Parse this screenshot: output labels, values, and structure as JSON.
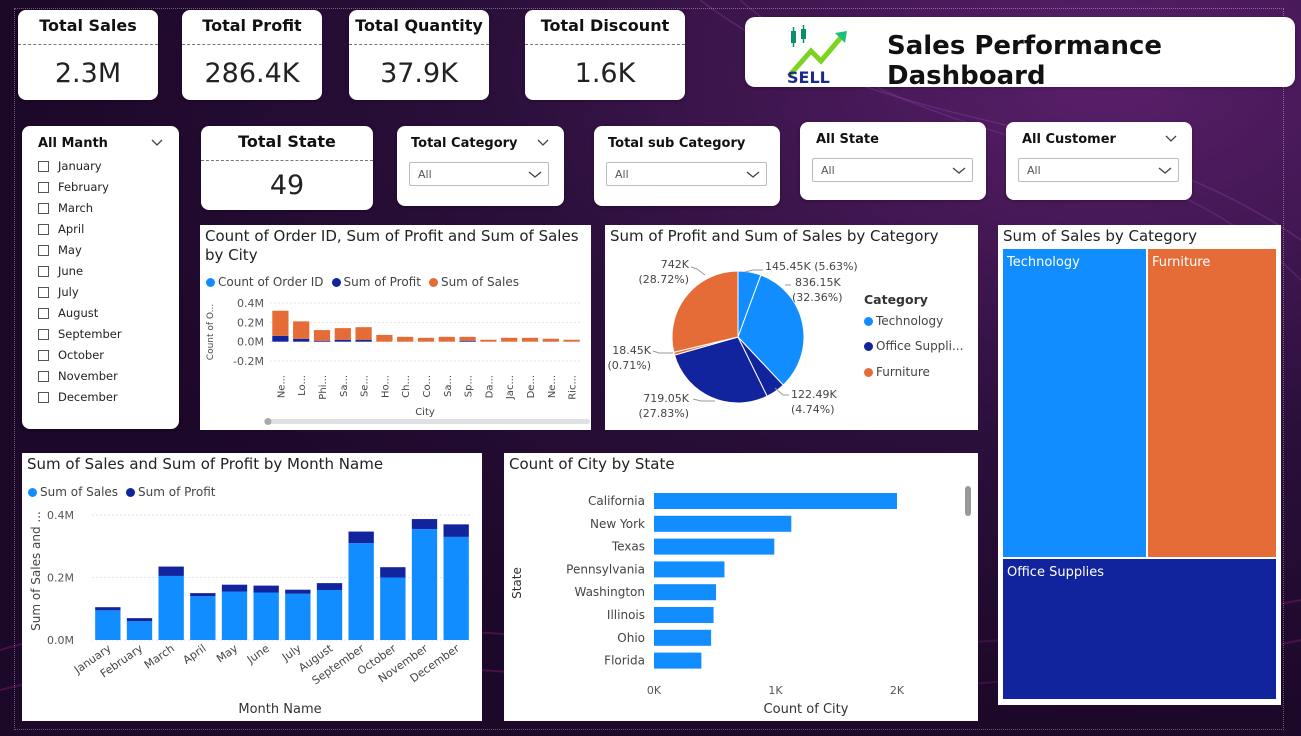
{
  "kpis": [
    {
      "label": "Total Sales",
      "value": "2.3M"
    },
    {
      "label": "Total Profit",
      "value": "286.4K"
    },
    {
      "label": "Total Quantity",
      "value": "37.9K"
    },
    {
      "label": "Total Discount",
      "value": "1.6K"
    }
  ],
  "header": {
    "logo_text": "SELL",
    "title": "Sales Performance Dashboard"
  },
  "total_state": {
    "label": "Total State",
    "value": "49"
  },
  "month_slicer": {
    "title": "All Manth",
    "months": [
      "January",
      "February",
      "March",
      "April",
      "May",
      "June",
      "July",
      "August",
      "September",
      "October",
      "November",
      "December"
    ]
  },
  "dropdowns": [
    {
      "title": "Total Category",
      "value": "All"
    },
    {
      "title": "Total sub Category",
      "value": "All"
    },
    {
      "title": "All State",
      "value": "All"
    },
    {
      "title": "All Customer",
      "value": "All"
    }
  ],
  "colors": {
    "blue": "#118dff",
    "navy": "#12239e",
    "orange": "#e66c37"
  },
  "chart_data": [
    {
      "type": "bar",
      "title": "Count of Order ID, Sum of Profit and Sum of Sales by City",
      "legend": [
        "Count of Order ID",
        "Sum of Profit",
        "Sum of Sales"
      ],
      "xlabel": "City",
      "ylabel": "Count of O...",
      "yticks": [
        "0.4M",
        "0.2M",
        "0.0M",
        "-0.2M"
      ],
      "categories": [
        "Ne...",
        "Lo...",
        "Phi...",
        "Sa...",
        "Se...",
        "Ho...",
        "Ch...",
        "Co...",
        "Sa...",
        "Sp...",
        "Da...",
        "Jac...",
        "De...",
        "Ne...",
        "Ric..."
      ],
      "series": [
        {
          "name": "Sum of Profit",
          "values": [
            0.06,
            0.03,
            0.01,
            0.02,
            0.02,
            0.0,
            0.0,
            0.0,
            0.0,
            0.01,
            0.0,
            0.0,
            0.0,
            0.0,
            0.0
          ]
        },
        {
          "name": "Sum of Sales",
          "values": [
            0.26,
            0.18,
            0.11,
            0.12,
            0.13,
            0.07,
            0.05,
            0.04,
            0.05,
            0.04,
            0.02,
            0.04,
            0.04,
            0.03,
            0.02
          ]
        }
      ],
      "ylim": [
        -0.2,
        0.4
      ]
    },
    {
      "type": "pie",
      "title": "Sum of Profit and Sum of Sales by Category",
      "legend_title": "Category",
      "legend": [
        "Technology",
        "Office Suppli...",
        "Furniture"
      ],
      "slices": [
        {
          "label": "145.45K (5.63%)",
          "value": 5.63,
          "color": "#118dff"
        },
        {
          "label": "836.15K (32.36%)",
          "value": 32.36,
          "color": "#118dff"
        },
        {
          "label": "122.49K (4.74%)",
          "value": 4.74,
          "color": "#12239e"
        },
        {
          "label": "719.05K (27.83%)",
          "value": 27.83,
          "color": "#12239e"
        },
        {
          "label": "18.45K (0.71%)",
          "value": 0.71,
          "color": "#e66c37"
        },
        {
          "label": "742K (28.72%)",
          "value": 28.72,
          "color": "#e66c37"
        }
      ],
      "slice_labels": {
        "s0a": "145.45K (5.63%)",
        "s1a": "836.15K",
        "s1b": "(32.36%)",
        "s2a": "122.49K",
        "s2b": "(4.74%)",
        "s3a": "719.05K",
        "s3b": "(27.83%)",
        "s4a": "18.45K",
        "s4b": "(0.71%)",
        "s5a": "742K",
        "s5b": "(28.72%)"
      }
    },
    {
      "type": "treemap",
      "title": "Sum of Sales by Category",
      "categories": [
        "Technology",
        "Furniture",
        "Office Supplies"
      ]
    },
    {
      "type": "bar",
      "title": "Sum of Sales and Sum of Profit by Month Name",
      "legend": [
        "Sum of Sales",
        "Sum of Profit"
      ],
      "xlabel": "Month Name",
      "ylabel": "Sum of Sales and ...",
      "yticks": [
        "0.4M",
        "0.2M",
        "0.0M"
      ],
      "categories": [
        "January",
        "February",
        "March",
        "April",
        "May",
        "June",
        "July",
        "August",
        "September",
        "October",
        "November",
        "December"
      ],
      "series": [
        {
          "name": "Sum of Sales",
          "values": [
            0.095,
            0.06,
            0.205,
            0.14,
            0.155,
            0.152,
            0.148,
            0.16,
            0.31,
            0.2,
            0.355,
            0.33
          ]
        },
        {
          "name": "Sum of Profit",
          "values": [
            0.01,
            0.01,
            0.03,
            0.01,
            0.022,
            0.022,
            0.013,
            0.022,
            0.037,
            0.033,
            0.032,
            0.04
          ]
        }
      ],
      "ylim": [
        0,
        0.4
      ]
    },
    {
      "type": "bar",
      "orientation": "horizontal",
      "title": "Count of City by State",
      "xlabel": "Count of City",
      "ylabel": "State",
      "xticks": [
        "0K",
        "1K",
        "2K"
      ],
      "categories": [
        "California",
        "New York",
        "Texas",
        "Pennsylvania",
        "Washington",
        "Illinois",
        "Ohio",
        "Florida"
      ],
      "values": [
        2000,
        1130,
        990,
        580,
        510,
        490,
        470,
        390
      ],
      "xlim": [
        0,
        2000
      ]
    }
  ]
}
